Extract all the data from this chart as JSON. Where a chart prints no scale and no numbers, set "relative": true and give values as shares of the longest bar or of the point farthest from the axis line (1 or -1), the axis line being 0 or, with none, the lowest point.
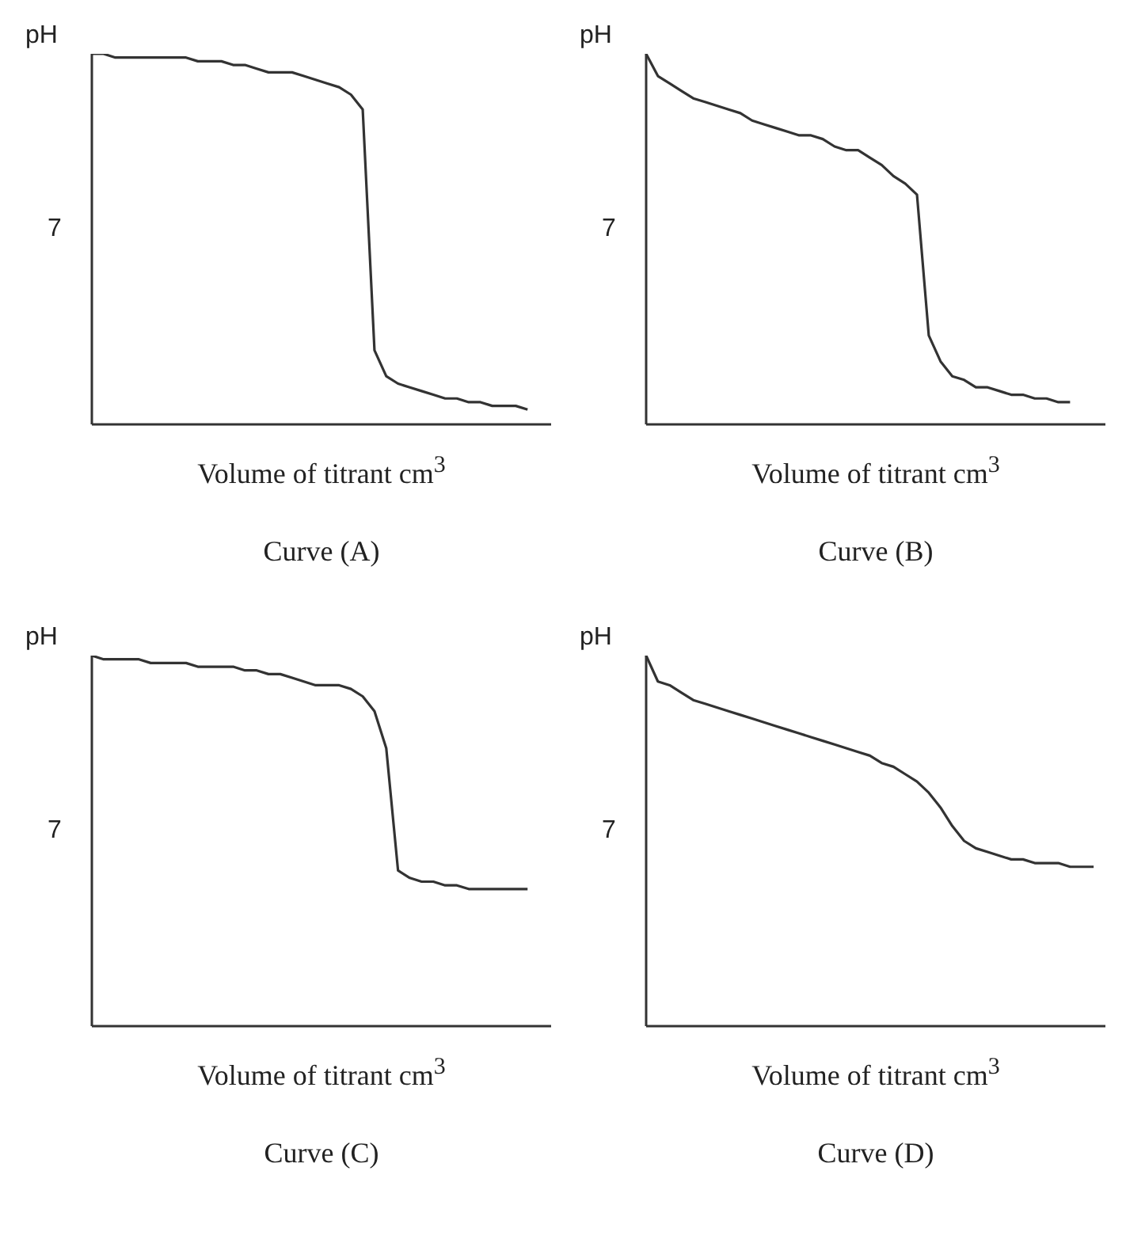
{
  "chart_data": [
    {
      "type": "line",
      "title": "Curve (A)",
      "xlabel": "Volume of titrant cm$^{3}$",
      "ylabel": "pH",
      "relative": true,
      "marker": "none",
      "line_style": "solid",
      "annotations": [
        "7"
      ],
      "categories": [
        null,
        null,
        null,
        null,
        null,
        null,
        null,
        null,
        null,
        null,
        null,
        null,
        null,
        null,
        null,
        null,
        null,
        null,
        null,
        null,
        null,
        null,
        null,
        null,
        null,
        null,
        null,
        null,
        null,
        null,
        null,
        null,
        null,
        null,
        null,
        null,
        null,
        null,
        null,
        null
      ],
      "series": [
        {
          "color": "#333333",
          "values": [
            1.0,
            1.0,
            0.99,
            0.99,
            0.99,
            0.99,
            0.99,
            0.99,
            0.99,
            0.98,
            0.98,
            0.98,
            0.97,
            0.97,
            0.96,
            0.95,
            0.95,
            0.95,
            0.94,
            0.93,
            0.92,
            0.91,
            0.89,
            0.85,
            0.2,
            0.13,
            0.11,
            0.1,
            0.09,
            0.08,
            0.07,
            0.07,
            0.06,
            0.06,
            0.05,
            0.05,
            0.05,
            0.04,
            null,
            null
          ]
        }
      ]
    },
    {
      "type": "line",
      "title": "Curve (B)",
      "xlabel": "Volume of titrant cm$^{3}$",
      "ylabel": "pH",
      "relative": true,
      "marker": "none",
      "line_style": "solid",
      "annotations": [
        "7"
      ],
      "categories": [
        null,
        null,
        null,
        null,
        null,
        null,
        null,
        null,
        null,
        null,
        null,
        null,
        null,
        null,
        null,
        null,
        null,
        null,
        null,
        null,
        null,
        null,
        null,
        null,
        null,
        null,
        null,
        null,
        null,
        null,
        null,
        null,
        null,
        null,
        null,
        null,
        null,
        null,
        null,
        null
      ],
      "series": [
        {
          "color": "#333333",
          "values": [
            1.0,
            0.94,
            0.92,
            0.9,
            0.88,
            0.87,
            0.86,
            0.85,
            0.84,
            0.82,
            0.81,
            0.8,
            0.79,
            0.78,
            0.78,
            0.77,
            0.75,
            0.74,
            0.74,
            0.72,
            0.7,
            0.67,
            0.65,
            0.62,
            0.24,
            0.17,
            0.13,
            0.12,
            0.1,
            0.1,
            0.09,
            0.08,
            0.08,
            0.07,
            0.07,
            0.06,
            0.06,
            null,
            null,
            null
          ]
        }
      ]
    },
    {
      "type": "line",
      "title": "Curve (C)",
      "xlabel": "Volume of titrant cm$^{3}$",
      "ylabel": "pH",
      "relative": true,
      "marker": "none",
      "line_style": "solid",
      "annotations": [
        "7"
      ],
      "categories": [
        null,
        null,
        null,
        null,
        null,
        null,
        null,
        null,
        null,
        null,
        null,
        null,
        null,
        null,
        null,
        null,
        null,
        null,
        null,
        null,
        null,
        null,
        null,
        null,
        null,
        null,
        null,
        null,
        null,
        null,
        null,
        null,
        null,
        null,
        null,
        null,
        null,
        null,
        null,
        null
      ],
      "series": [
        {
          "color": "#333333",
          "values": [
            1.0,
            0.99,
            0.99,
            0.99,
            0.99,
            0.98,
            0.98,
            0.98,
            0.98,
            0.97,
            0.97,
            0.97,
            0.97,
            0.96,
            0.96,
            0.95,
            0.95,
            0.94,
            0.93,
            0.92,
            0.92,
            0.92,
            0.91,
            0.89,
            0.85,
            0.75,
            0.42,
            0.4,
            0.39,
            0.39,
            0.38,
            0.38,
            0.37,
            0.37,
            0.37,
            0.37,
            0.37,
            0.37,
            null,
            null
          ]
        }
      ]
    },
    {
      "type": "line",
      "title": "Curve (D)",
      "xlabel": "Volume of titrant cm$^{3}$",
      "ylabel": "pH",
      "relative": true,
      "marker": "none",
      "line_style": "solid",
      "annotations": [
        "7"
      ],
      "categories": [
        null,
        null,
        null,
        null,
        null,
        null,
        null,
        null,
        null,
        null,
        null,
        null,
        null,
        null,
        null,
        null,
        null,
        null,
        null,
        null,
        null,
        null,
        null,
        null,
        null,
        null,
        null,
        null,
        null,
        null,
        null,
        null,
        null,
        null,
        null,
        null,
        null,
        null,
        null,
        null
      ],
      "series": [
        {
          "color": "#333333",
          "values": [
            1.0,
            0.93,
            0.92,
            0.9,
            0.88,
            0.87,
            0.86,
            0.85,
            0.84,
            0.83,
            0.82,
            0.81,
            0.8,
            0.79,
            0.78,
            0.77,
            0.76,
            0.75,
            0.74,
            0.73,
            0.71,
            0.7,
            0.68,
            0.66,
            0.63,
            0.59,
            0.54,
            0.5,
            0.48,
            0.47,
            0.46,
            0.45,
            0.45,
            0.44,
            0.44,
            0.44,
            0.43,
            0.43,
            0.43,
            null
          ]
        }
      ]
    }
  ]
}
